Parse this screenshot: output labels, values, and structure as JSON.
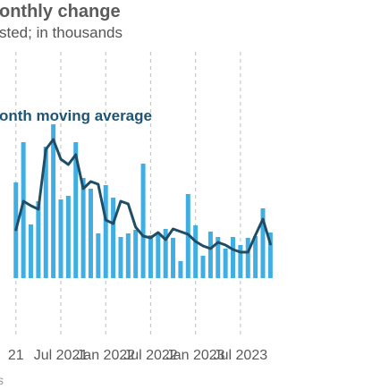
{
  "colors": {
    "bar": "#40aee3",
    "line": "#1f4d66",
    "grid": "#c8c8c8",
    "series_label": "#1f5573"
  },
  "chart_data": {
    "type": "bar",
    "title": "onthly change",
    "subtitle": "sted; in thousands",
    "source": "s",
    "line_label": "onth moving average",
    "x_ticks": [
      {
        "label": "21",
        "month": "2021-01"
      },
      {
        "label": "Jul 2021",
        "month": "2021-07"
      },
      {
        "label": "Jan 2022",
        "month": "2022-01"
      },
      {
        "label": "Jul 2022",
        "month": "2022-07"
      },
      {
        "label": "Jan 2023",
        "month": "2023-01"
      },
      {
        "label": "Jul 2023",
        "month": "2023-07"
      }
    ],
    "series": [
      {
        "kind": "bar",
        "months": [
          "2021-01",
          "2021-02",
          "2021-03",
          "2021-04",
          "2021-05",
          "2021-06",
          "2021-07",
          "2021-08",
          "2021-09",
          "2021-10",
          "2021-11",
          "2021-12",
          "2022-01",
          "2022-02",
          "2022-03",
          "2022-04",
          "2022-05",
          "2022-06",
          "2022-07",
          "2022-08",
          "2022-09",
          "2022-10",
          "2022-11",
          "2022-12",
          "2023-01",
          "2023-02",
          "2023-03",
          "2023-04",
          "2023-05",
          "2023-06",
          "2023-07",
          "2023-08",
          "2023-09",
          "2023-10",
          "2023-11"
        ],
        "values": [
          535,
          760,
          300,
          430,
          735,
          860,
          440,
          460,
          760,
          560,
          500,
          250,
          520,
          450,
          230,
          250,
          270,
          640,
          240,
          245,
          275,
          225,
          95,
          470,
          295,
          125,
          260,
          230,
          165,
          230,
          185,
          225,
          235,
          390,
          255
        ]
      },
      {
        "kind": "line",
        "months": [
          "2021-01",
          "2021-02",
          "2021-03",
          "2021-04",
          "2021-05",
          "2021-06",
          "2021-07",
          "2021-08",
          "2021-09",
          "2021-10",
          "2021-11",
          "2021-12",
          "2022-01",
          "2022-02",
          "2022-03",
          "2022-04",
          "2022-05",
          "2022-06",
          "2022-07",
          "2022-08",
          "2022-09",
          "2022-10",
          "2022-11",
          "2022-12",
          "2023-01",
          "2023-02",
          "2023-03",
          "2023-04",
          "2023-05",
          "2023-06",
          "2023-07",
          "2023-08",
          "2023-09",
          "2023-10",
          "2023-11"
        ],
        "values": [
          270,
          430,
          405,
          385,
          720,
          775,
          665,
          635,
          690,
          500,
          540,
          525,
          325,
          305,
          430,
          415,
          285,
          235,
          225,
          255,
          215,
          275,
          260,
          245,
          205,
          180,
          165,
          200,
          185,
          160,
          145,
          145,
          240,
          330,
          190
        ]
      }
    ]
  }
}
